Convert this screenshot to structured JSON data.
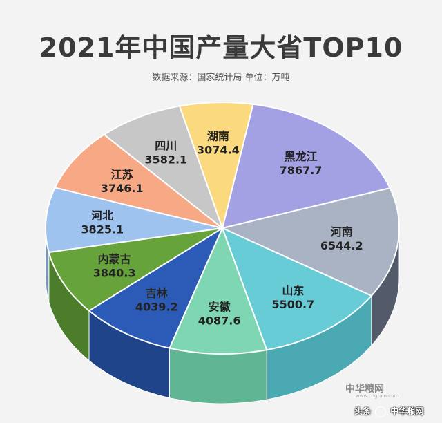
{
  "header": {
    "title": "2021年中国产量大省TOP10",
    "subtitle": "数据来源：国家统计局   单位：万吨"
  },
  "chart_data": {
    "type": "pie",
    "title": "2021年中国产量大省TOP10",
    "subtitle": "数据来源：国家统计局   单位：万吨",
    "unit": "万吨",
    "slices": [
      {
        "label": "黑龙江",
        "value": 7867.7,
        "value_text": "7867.7",
        "color": "#a3a0e4",
        "side": "#7d7aba"
      },
      {
        "label": "河南",
        "value": 6544.2,
        "value_text": "6544.2",
        "color": "#a9b3c4",
        "side": "#535b6a"
      },
      {
        "label": "山东",
        "value": 5500.7,
        "value_text": "5500.7",
        "color": "#68ccd6",
        "side": "#4aa9b3"
      },
      {
        "label": "安徽",
        "value": 4087.6,
        "value_text": "4087.6",
        "color": "#7ed7b2",
        "side": "#5fb594"
      },
      {
        "label": "吉林",
        "value": 4039.2,
        "value_text": "4039.2",
        "color": "#2b5bb6",
        "side": "#1f4489"
      },
      {
        "label": "内蒙古",
        "value": 3840.3,
        "value_text": "3840.3",
        "color": "#66a33a",
        "side": "#4c7d2b"
      },
      {
        "label": "河北",
        "value": 3825.1,
        "value_text": "3825.1",
        "color": "#9ec3ef",
        "side": "#7896b8"
      },
      {
        "label": "江苏",
        "value": 3746.1,
        "value_text": "3746.1",
        "color": "#f7a885",
        "side": "#c88468"
      },
      {
        "label": "四川",
        "value": 3582.1,
        "value_text": "3582.1",
        "color": "#c7c7c7",
        "side": "#9c9c9c"
      },
      {
        "label": "湖南",
        "value": 3074.4,
        "value_text": "3074.4",
        "color": "#fbd97f",
        "side": "#d0b05f"
      }
    ]
  },
  "watermark": {
    "logo": "中华粮网",
    "logo_sub": "www.cngrain.com",
    "bottom_left": "头条",
    "bottom_right": "中华粮网"
  }
}
